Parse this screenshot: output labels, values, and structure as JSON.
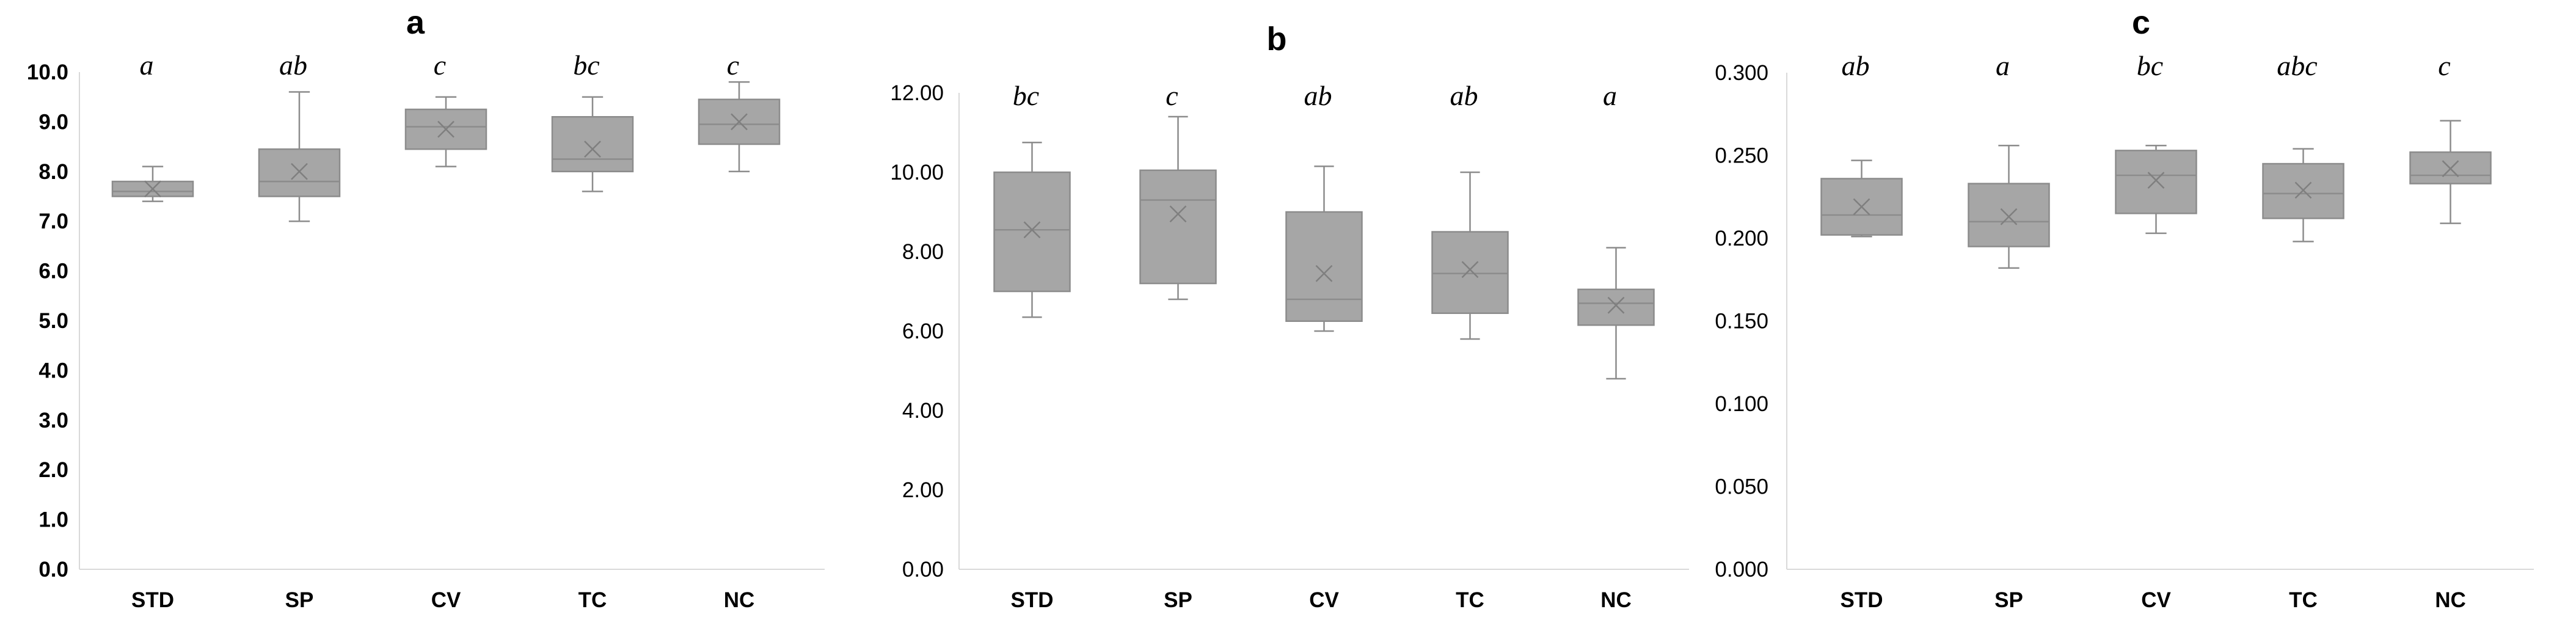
{
  "chart_data": [
    {
      "panel": "a",
      "type": "box",
      "title": "a",
      "categories": [
        "STD",
        "SP",
        "CV",
        "TC",
        "NC"
      ],
      "yticks": [
        "0.0",
        "1.0",
        "2.0",
        "3.0",
        "4.0",
        "5.0",
        "6.0",
        "7.0",
        "8.0",
        "9.0",
        "10.0"
      ],
      "ylim": [
        0,
        10
      ],
      "tick_bold": true,
      "boxes": [
        {
          "category": "STD",
          "min": 7.4,
          "q1": 7.5,
          "median": 7.6,
          "q3": 7.8,
          "max": 8.1,
          "mean": 7.65,
          "letter": "a"
        },
        {
          "category": "SP",
          "min": 7.0,
          "q1": 7.5,
          "median": 7.8,
          "q3": 8.45,
          "max": 9.6,
          "mean": 8.0,
          "letter": "ab"
        },
        {
          "category": "CV",
          "min": 8.1,
          "q1": 8.45,
          "median": 8.9,
          "q3": 9.25,
          "max": 9.5,
          "mean": 8.85,
          "letter": "c"
        },
        {
          "category": "TC",
          "min": 7.6,
          "q1": 8.0,
          "median": 8.25,
          "q3": 9.1,
          "max": 9.5,
          "mean": 8.45,
          "letter": "bc"
        },
        {
          "category": "NC",
          "min": 8.0,
          "q1": 8.55,
          "median": 8.95,
          "q3": 9.45,
          "max": 9.8,
          "mean": 9.0,
          "letter": "c"
        }
      ]
    },
    {
      "panel": "b",
      "type": "box",
      "title": "b",
      "categories": [
        "STD",
        "SP",
        "CV",
        "TC",
        "NC"
      ],
      "yticks": [
        "0.00",
        "2.00",
        "4.00",
        "6.00",
        "8.00",
        "10.00",
        "12.00"
      ],
      "ylim": [
        0,
        12
      ],
      "tick_bold": false,
      "boxes": [
        {
          "category": "STD",
          "min": 6.35,
          "q1": 7.0,
          "median": 8.55,
          "q3": 10.0,
          "max": 10.75,
          "mean": 8.55,
          "letter": "bc"
        },
        {
          "category": "SP",
          "min": 6.8,
          "q1": 7.2,
          "median": 9.3,
          "q3": 10.05,
          "max": 11.4,
          "mean": 8.95,
          "letter": "c"
        },
        {
          "category": "CV",
          "min": 6.0,
          "q1": 6.25,
          "median": 6.8,
          "q3": 9.0,
          "max": 10.15,
          "mean": 7.45,
          "letter": "ab"
        },
        {
          "category": "TC",
          "min": 5.8,
          "q1": 6.45,
          "median": 7.45,
          "q3": 8.5,
          "max": 10.0,
          "mean": 7.55,
          "letter": "ab"
        },
        {
          "category": "NC",
          "min": 4.8,
          "q1": 6.15,
          "median": 6.7,
          "q3": 7.05,
          "max": 8.1,
          "mean": 6.65,
          "letter": "a"
        }
      ]
    },
    {
      "panel": "c",
      "type": "box",
      "title": "c",
      "categories": [
        "STD",
        "SP",
        "CV",
        "TC",
        "NC"
      ],
      "yticks": [
        "0.000",
        "0.050",
        "0.100",
        "0.150",
        "0.200",
        "0.250",
        "0.300"
      ],
      "ylim": [
        0,
        0.3
      ],
      "tick_bold": false,
      "boxes": [
        {
          "category": "STD",
          "min": 0.201,
          "q1": 0.202,
          "median": 0.214,
          "q3": 0.236,
          "max": 0.247,
          "mean": 0.219,
          "letter": "ab"
        },
        {
          "category": "SP",
          "min": 0.182,
          "q1": 0.195,
          "median": 0.21,
          "q3": 0.233,
          "max": 0.256,
          "mean": 0.213,
          "letter": "a"
        },
        {
          "category": "CV",
          "min": 0.203,
          "q1": 0.215,
          "median": 0.238,
          "q3": 0.253,
          "max": 0.256,
          "mean": 0.235,
          "letter": "bc"
        },
        {
          "category": "TC",
          "min": 0.198,
          "q1": 0.212,
          "median": 0.227,
          "q3": 0.245,
          "max": 0.254,
          "mean": 0.229,
          "letter": "abc"
        },
        {
          "category": "NC",
          "min": 0.209,
          "q1": 0.233,
          "median": 0.238,
          "q3": 0.252,
          "max": 0.271,
          "mean": 0.242,
          "letter": "c"
        }
      ]
    }
  ]
}
